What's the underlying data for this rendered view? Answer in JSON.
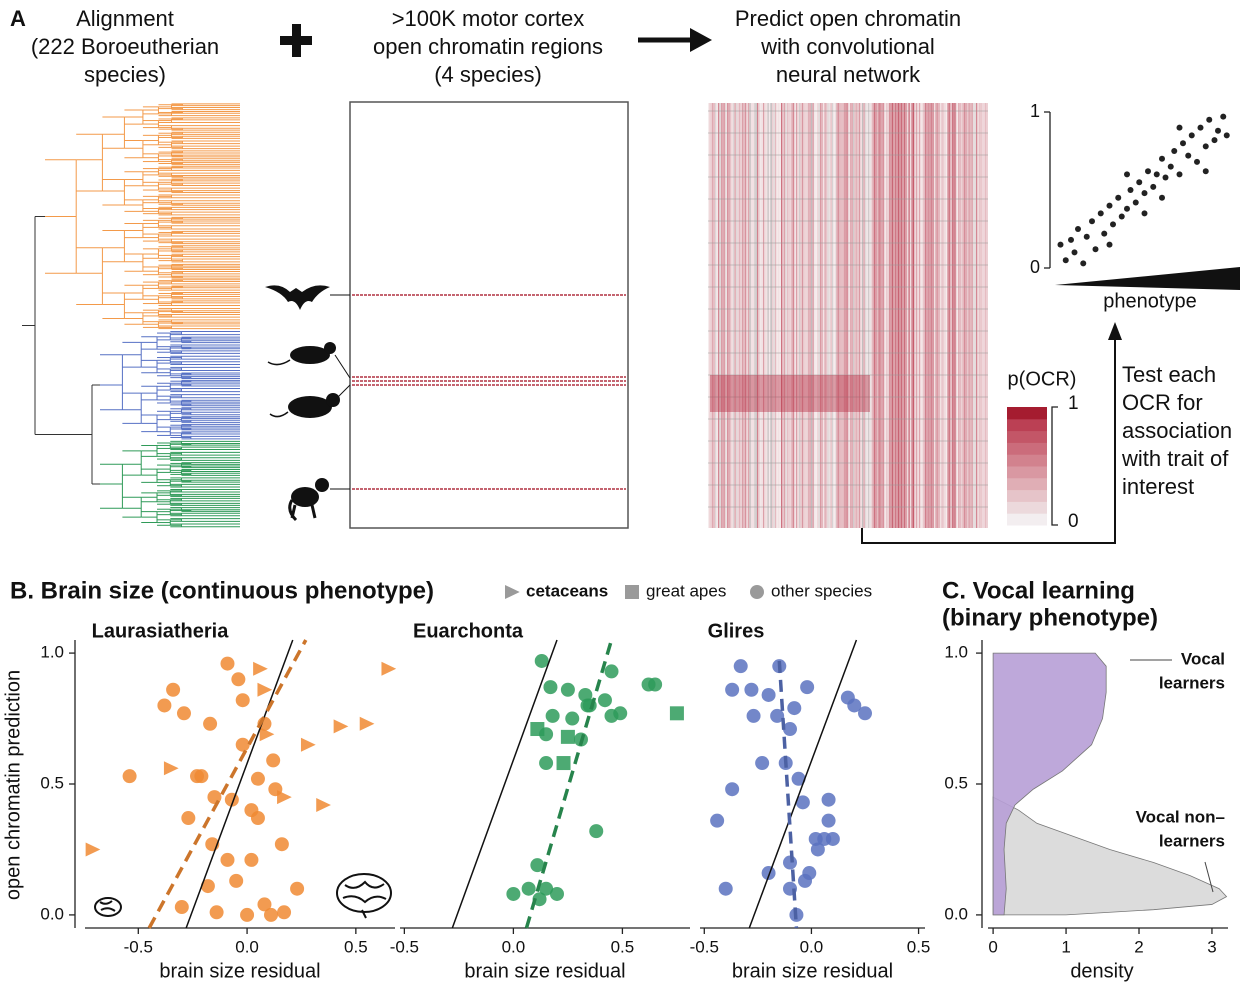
{
  "panel_a": {
    "label": "A",
    "alignment_lines": [
      "Alignment",
      "(222 Boroeutherian",
      "species)"
    ],
    "ocr_lines": [
      ">100K motor cortex",
      "open chromatin regions",
      "(4 species)"
    ],
    "predict_lines": [
      "Predict open chromatin",
      "with convolutional",
      "neural network"
    ],
    "test_lines": [
      "Test each",
      "OCR for",
      "association",
      "with trait of",
      "interest"
    ],
    "colorbar": {
      "title": "p(OCR)",
      "ticks": [
        0,
        1
      ],
      "colors": [
        "#f3eef0",
        "#ecd9dc",
        "#e6c4c9",
        "#e0aeb5",
        "#d998a2",
        "#d2828e",
        "#cb6c7b",
        "#c35667",
        "#bb4054",
        "#a51c30"
      ]
    },
    "mini_scatter": {
      "type": "scatter",
      "x_label": "phenotype",
      "xlim": [
        0,
        1
      ],
      "ylim": [
        0,
        1
      ],
      "yticks": [
        0,
        1
      ],
      "color": "#222222",
      "x": [
        0.02,
        0.05,
        0.08,
        0.1,
        0.12,
        0.15,
        0.17,
        0.2,
        0.22,
        0.25,
        0.27,
        0.3,
        0.32,
        0.35,
        0.37,
        0.4,
        0.42,
        0.45,
        0.47,
        0.5,
        0.52,
        0.55,
        0.57,
        0.6,
        0.62,
        0.65,
        0.67,
        0.7,
        0.72,
        0.75,
        0.77,
        0.8,
        0.82,
        0.85,
        0.87,
        0.9,
        0.92,
        0.95,
        0.97,
        0.6,
        0.4,
        0.3,
        0.7,
        0.85,
        0.5
      ],
      "y": [
        0.15,
        0.05,
        0.18,
        0.1,
        0.25,
        0.03,
        0.2,
        0.3,
        0.12,
        0.35,
        0.22,
        0.4,
        0.28,
        0.45,
        0.33,
        0.38,
        0.5,
        0.42,
        0.55,
        0.48,
        0.62,
        0.52,
        0.6,
        0.7,
        0.58,
        0.65,
        0.75,
        0.6,
        0.8,
        0.72,
        0.85,
        0.68,
        0.9,
        0.78,
        0.95,
        0.82,
        0.88,
        0.97,
        0.85,
        0.45,
        0.6,
        0.15,
        0.9,
        0.62,
        0.35
      ]
    }
  },
  "panel_b": {
    "title": "B. Brain size (continuous phenotype)",
    "legend": [
      {
        "name": "cetaceans",
        "marker": "triangle"
      },
      {
        "name": "great apes",
        "marker": "square"
      },
      {
        "name": "other species",
        "marker": "circle"
      }
    ],
    "legend_color": "#9a9a9a",
    "y_label": "open chromatin prediction",
    "ylim": [
      -0.05,
      1.05
    ],
    "yticks": [
      {
        "value": 0,
        "label": "0.0"
      },
      0.5,
      {
        "value": 1,
        "label": "1.0"
      }
    ],
    "subpanels": [
      {
        "type": "scatter",
        "title": "Laurasiatheria",
        "color": "#f08a32",
        "x_label": "brain size residual",
        "xlim": [
          -0.745,
          0.68
        ],
        "xticks": [
          -0.5,
          {
            "value": 0,
            "label": "0.0"
          },
          0.5
        ],
        "series": [
          {
            "marker": "circle",
            "x": [
              -0.09,
              -0.34,
              -0.04,
              -0.38,
              -0.29,
              -0.17,
              -0.54,
              -0.23,
              -0.02,
              0.12,
              0.13,
              0.02,
              -0.15,
              -0.27,
              -0.07,
              0.05,
              -0.16,
              0.05,
              0.16,
              -0.09,
              -0.18,
              -0.05,
              0.23,
              0.08,
              0,
              -0.14,
              -0.3,
              0.11,
              0.02,
              0.17,
              -0.21,
              -0.02,
              0.08
            ],
            "y": [
              0.96,
              0.86,
              0.9,
              0.8,
              0.77,
              0.73,
              0.53,
              0.53,
              0.65,
              0.59,
              0.48,
              0.4,
              0.45,
              0.37,
              0.44,
              0.52,
              0.27,
              0.37,
              0.27,
              0.21,
              0.11,
              0.13,
              0.1,
              0.04,
              0,
              0.01,
              0.03,
              0,
              0.21,
              0.01,
              0.53,
              0.82,
              0.73
            ]
          },
          {
            "marker": "triangle",
            "x": [
              0.65,
              0.55,
              0.43,
              0.28,
              0.35,
              0.17,
              0.08,
              -0.35,
              -0.71,
              0.09,
              0.06
            ],
            "y": [
              0.94,
              0.73,
              0.72,
              0.65,
              0.42,
              0.45,
              0.86,
              0.56,
              0.25,
              0.69,
              0.94
            ]
          }
        ],
        "fit_line": {
          "x": [
            -0.45,
            0.27
          ],
          "y": [
            -0.05,
            1.05
          ]
        },
        "reference_line": {
          "x": [
            -0.28,
            0.21
          ],
          "y": [
            -0.05,
            1.05
          ]
        }
      },
      {
        "type": "scatter",
        "title": "Euarchonta",
        "color": "#2e9b5a",
        "x_label": "brain size residual",
        "xlim": [
          -0.52,
          0.81
        ],
        "xticks": [
          -0.5,
          {
            "value": 0,
            "label": "0.0"
          },
          0.5
        ],
        "series": [
          {
            "marker": "circle",
            "x": [
              0.13,
              0.45,
              0.62,
              0.65,
              0.17,
              0.25,
              0.33,
              0.42,
              0.49,
              0.35,
              0.18,
              0.27,
              0.45,
              0.31,
              0.15,
              0.15,
              0.38,
              0.11,
              0.07,
              0.15,
              0.2,
              0,
              0.12,
              0.34
            ],
            "y": [
              0.97,
              0.93,
              0.88,
              0.88,
              0.87,
              0.86,
              0.84,
              0.82,
              0.77,
              0.8,
              0.76,
              0.75,
              0.76,
              0.67,
              0.69,
              0.58,
              0.32,
              0.19,
              0.1,
              0.1,
              0.08,
              0.08,
              0.06,
              0.8
            ]
          },
          {
            "marker": "square",
            "x": [
              0.75,
              0.11,
              0.25,
              0.23
            ],
            "y": [
              0.77,
              0.71,
              0.68,
              0.58
            ]
          }
        ],
        "fit_line": {
          "x": [
            0.06,
            0.45
          ],
          "y": [
            -0.05,
            1.05
          ]
        },
        "reference_line": {
          "x": [
            -0.28,
            0.2
          ],
          "y": [
            -0.05,
            1.05
          ]
        }
      },
      {
        "type": "scatter",
        "title": "Glires",
        "color": "#5a72c0",
        "x_label": "brain size residual",
        "xlim": [
          -0.52,
          0.53
        ],
        "xticks": [
          -0.5,
          {
            "value": 0,
            "label": "0.0"
          },
          0.5
        ],
        "series": [
          {
            "marker": "circle",
            "x": [
              -0.33,
              -0.15,
              -0.37,
              -0.28,
              -0.2,
              -0.02,
              0.17,
              0.2,
              0.25,
              -0.27,
              -0.16,
              -0.08,
              -0.1,
              -0.23,
              -0.12,
              -0.06,
              -0.37,
              -0.44,
              -0.04,
              0.08,
              0.08,
              0.02,
              0.06,
              0.1,
              0.03,
              -0.1,
              -0.2,
              -0.01,
              -0.03,
              -0.1,
              -0.4,
              -0.07
            ],
            "y": [
              0.95,
              0.95,
              0.86,
              0.86,
              0.84,
              0.87,
              0.83,
              0.8,
              0.77,
              0.76,
              0.76,
              0.79,
              0.71,
              0.58,
              0.58,
              0.52,
              0.48,
              0.36,
              0.43,
              0.44,
              0.36,
              0.29,
              0.29,
              0.29,
              0.25,
              0.2,
              0.16,
              0.16,
              0.13,
              0.1,
              0.1,
              0
            ]
          }
        ],
        "fit_line": {
          "x": [
            -0.15,
            -0.07
          ],
          "y": [
            0.97,
            -0.05
          ]
        },
        "reference_line": {
          "x": [
            -0.29,
            0.21
          ],
          "y": [
            -0.05,
            1.05
          ]
        }
      }
    ]
  },
  "panel_c": {
    "type": "density",
    "title_lines": [
      "C. Vocal learning",
      "(binary phenotype)"
    ],
    "x_label": "density",
    "xlim": [
      -0.07,
      3.22
    ],
    "xticks": [
      0,
      1,
      2,
      3
    ],
    "ylim": [
      -0.05,
      1.05
    ],
    "yticks": [
      {
        "value": 0,
        "label": "0.0"
      },
      0.5,
      {
        "value": 1,
        "label": "1.0"
      }
    ],
    "series": [
      {
        "name_lines": [
          "Vocal non–",
          "learners"
        ],
        "color": "#dcdcdc",
        "label_color": "#111111",
        "y": [
          0.45,
          0.4,
          0.35,
          0.3,
          0.25,
          0.2,
          0.15,
          0.1,
          0.07,
          0.04,
          0.02,
          0
        ],
        "density": [
          0,
          0.35,
          0.6,
          1.1,
          1.6,
          2.2,
          2.7,
          3.1,
          3.2,
          3.0,
          2.2,
          1.0
        ]
      },
      {
        "name_lines": [
          "Vocal",
          "learners"
        ],
        "color": "#b79fd6",
        "label_color": "#9b6fc4",
        "y": [
          1,
          0.95,
          0.85,
          0.75,
          0.65,
          0.55,
          0.48,
          0.42,
          0.35,
          0.25,
          0.1,
          0
        ],
        "density": [
          1.4,
          1.55,
          1.55,
          1.5,
          1.35,
          0.95,
          0.55,
          0.3,
          0.18,
          0.15,
          0.18,
          0.15
        ]
      }
    ]
  }
}
